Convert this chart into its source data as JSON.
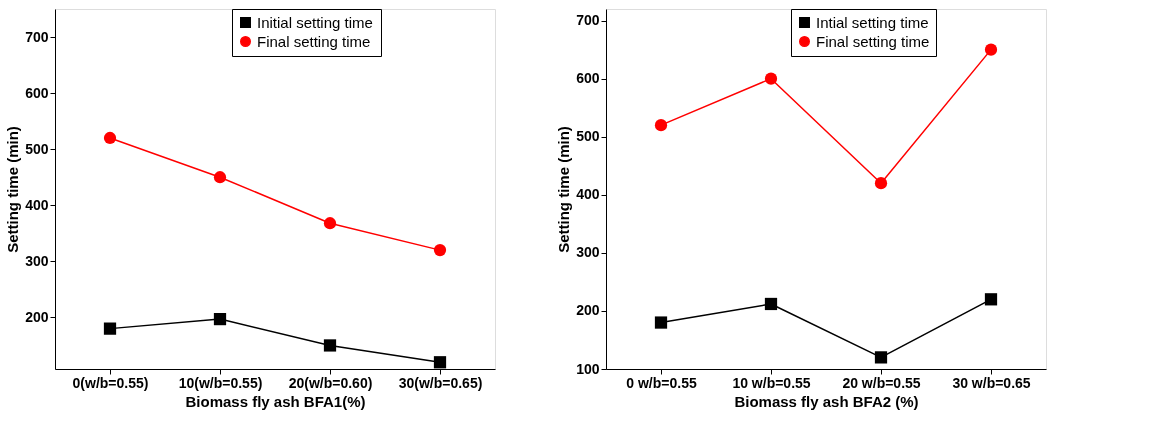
{
  "chart_data": [
    {
      "type": "line",
      "xlabel": "Biomass fly ash BFA1(%)",
      "ylabel": "Setting time (min)",
      "categories": [
        "0(w/b=0.55)",
        "10(w/b=0.55)",
        "20(w/b=0.60)",
        "30(w/b=0.65)"
      ],
      "ylim": [
        108,
        750
      ],
      "yticks": [
        200,
        300,
        400,
        500,
        600,
        700
      ],
      "legend": "top right",
      "grid": false,
      "series": [
        {
          "name": "Initial setting time",
          "color": "#000000",
          "marker": "square",
          "values": [
            180,
            197,
            150,
            120
          ]
        },
        {
          "name": "Final setting  time",
          "color": "#ff0000",
          "marker": "circle",
          "values": [
            520,
            450,
            368,
            320
          ]
        }
      ]
    },
    {
      "type": "line",
      "xlabel": "Biomass fly ash BFA2 (%)",
      "ylabel": "Setting time (min)",
      "categories": [
        "0 w/b=0.55",
        "10 w/b=0.55",
        "20 w/b=0.55",
        "30 w/b=0.65"
      ],
      "ylim": [
        100,
        720
      ],
      "yticks": [
        100,
        200,
        300,
        400,
        500,
        600,
        700
      ],
      "legend": "top right",
      "grid": false,
      "series": [
        {
          "name": "Intial setting time",
          "color": "#000000",
          "marker": "square",
          "values": [
            180,
            212,
            120,
            220
          ]
        },
        {
          "name": "Final setting time",
          "color": "#ff0000",
          "marker": "circle",
          "values": [
            520,
            600,
            420,
            650
          ]
        }
      ]
    }
  ]
}
